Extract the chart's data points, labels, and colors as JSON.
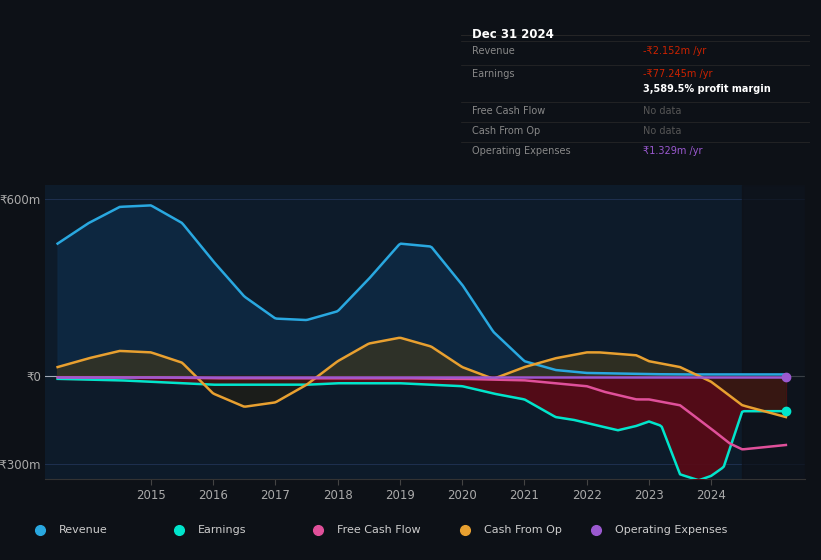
{
  "bg_color": "#0d1117",
  "plot_bg_color": "#0d1b2a",
  "grid_color": "#1e3050",
  "ylim": [
    -350,
    650
  ],
  "yticks": [
    -300,
    0,
    600
  ],
  "ytick_labels": [
    "-₹300m",
    "₹0",
    "₹600m"
  ],
  "xlim": [
    2013.3,
    2025.5
  ],
  "xticks": [
    2015,
    2016,
    2017,
    2018,
    2019,
    2020,
    2021,
    2022,
    2023,
    2024
  ],
  "series": {
    "revenue": {
      "color": "#29a8e0",
      "fill_color": "#0d2a45",
      "fill_alpha": 0.85,
      "label": "Revenue",
      "lw": 1.8,
      "x": [
        2013.5,
        2014.0,
        2014.5,
        2015.0,
        2015.5,
        2016.0,
        2016.5,
        2017.0,
        2017.5,
        2018.0,
        2018.5,
        2019.0,
        2019.5,
        2020.0,
        2020.5,
        2021.0,
        2021.5,
        2022.0,
        2022.5,
        2023.0,
        2023.5,
        2024.0,
        2024.5,
        2025.2
      ],
      "y": [
        450,
        520,
        575,
        580,
        520,
        390,
        270,
        195,
        190,
        220,
        330,
        450,
        440,
        310,
        150,
        50,
        20,
        10,
        8,
        6,
        5,
        5,
        5,
        5
      ]
    },
    "earnings": {
      "color": "#00e5cc",
      "fill_color": "#5a0a15",
      "fill_alpha": 0.9,
      "label": "Earnings",
      "lw": 1.8,
      "x": [
        2013.5,
        2014.5,
        2015.0,
        2016.0,
        2017.0,
        2017.5,
        2018.0,
        2019.0,
        2019.5,
        2020.0,
        2020.5,
        2021.0,
        2021.5,
        2021.8,
        2022.0,
        2022.3,
        2022.5,
        2022.8,
        2023.0,
        2023.2,
        2023.5,
        2023.8,
        2024.0,
        2024.2,
        2024.5,
        2025.2
      ],
      "y": [
        -10,
        -15,
        -20,
        -30,
        -30,
        -30,
        -25,
        -25,
        -30,
        -35,
        -60,
        -80,
        -140,
        -150,
        -160,
        -175,
        -185,
        -170,
        -155,
        -170,
        -335,
        -355,
        -340,
        -310,
        -120,
        -120
      ]
    },
    "free_cash_flow": {
      "color": "#e0509a",
      "label": "Free Cash Flow",
      "lw": 1.8,
      "x": [
        2013.5,
        2015.0,
        2016.0,
        2017.0,
        2018.0,
        2019.0,
        2020.0,
        2021.0,
        2021.5,
        2022.0,
        2022.3,
        2022.5,
        2022.8,
        2023.0,
        2023.5,
        2024.0,
        2024.3,
        2024.5,
        2025.2
      ],
      "y": [
        -5,
        -5,
        -8,
        -8,
        -8,
        -8,
        -10,
        -15,
        -25,
        -35,
        -55,
        -65,
        -80,
        -80,
        -100,
        -180,
        -230,
        -250,
        -235
      ]
    },
    "cash_from_op": {
      "color": "#e8a030",
      "fill_color_pos": "#3d3020",
      "fill_color_neg": "#2a1a10",
      "label": "Cash From Op",
      "lw": 1.8,
      "x": [
        2013.5,
        2014.0,
        2014.5,
        2015.0,
        2015.5,
        2016.0,
        2016.5,
        2017.0,
        2017.5,
        2018.0,
        2018.5,
        2019.0,
        2019.5,
        2020.0,
        2020.5,
        2021.0,
        2021.5,
        2022.0,
        2022.2,
        2022.5,
        2022.8,
        2023.0,
        2023.5,
        2024.0,
        2024.5,
        2025.2
      ],
      "y": [
        30,
        60,
        85,
        80,
        45,
        -60,
        -105,
        -90,
        -30,
        50,
        110,
        130,
        100,
        30,
        -10,
        30,
        60,
        80,
        80,
        75,
        70,
        50,
        30,
        -20,
        -100,
        -140
      ]
    },
    "op_expenses": {
      "color": "#9b59d0",
      "label": "Operating Expenses",
      "lw": 1.8,
      "x": [
        2013.5,
        2015.0,
        2017.0,
        2019.0,
        2021.0,
        2022.0,
        2023.0,
        2024.0,
        2025.2
      ],
      "y": [
        -5,
        -5,
        -5,
        -5,
        -5,
        -5,
        -5,
        -5,
        -5
      ]
    }
  },
  "info_box": {
    "title": "Dec 31 2024",
    "rows": [
      {
        "label": "Revenue",
        "value": "-₹2.152m /yr",
        "value_color": "#cc2200"
      },
      {
        "label": "Earnings",
        "value": "-₹77.245m /yr",
        "value_color": "#cc2200"
      },
      {
        "label": "",
        "value": "3,589.5% profit margin",
        "value_color": "#ffffff",
        "bold": true
      },
      {
        "label": "Free Cash Flow",
        "value": "No data",
        "value_color": "#555555"
      },
      {
        "label": "Cash From Op",
        "value": "No data",
        "value_color": "#555555"
      },
      {
        "label": "Operating Expenses",
        "value": "₹1.329m /yr",
        "value_color": "#9b59d0"
      }
    ]
  },
  "legend": [
    {
      "label": "Revenue",
      "color": "#29a8e0"
    },
    {
      "label": "Earnings",
      "color": "#00e5cc"
    },
    {
      "label": "Free Cash Flow",
      "color": "#e0509a"
    },
    {
      "label": "Cash From Op",
      "color": "#e8a030"
    },
    {
      "label": "Operating Expenses",
      "color": "#9b59d0"
    }
  ]
}
